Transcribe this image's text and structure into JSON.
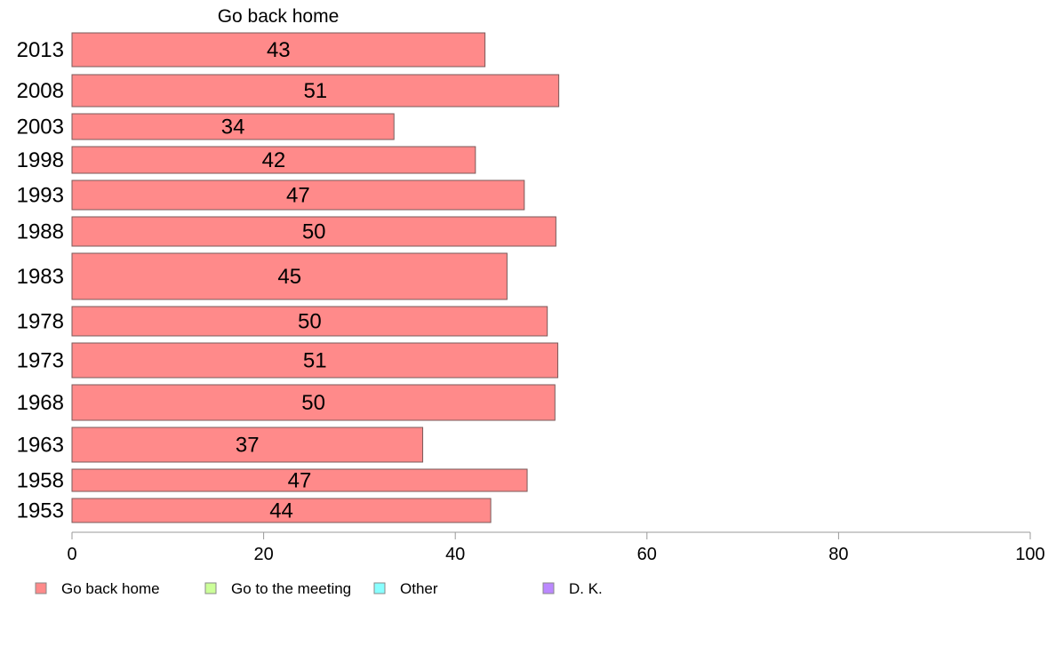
{
  "chart_data": {
    "type": "bar",
    "orientation": "horizontal",
    "title": "Go back home",
    "categories": [
      "2013",
      "2008",
      "2003",
      "1998",
      "1993",
      "1988",
      "1983",
      "1978",
      "1973",
      "1968",
      "1963",
      "1958",
      "1953"
    ],
    "series": [
      {
        "name": "Go back home",
        "color": "#ff8a8a",
        "values": [
          43.1,
          50.8,
          33.6,
          42.1,
          47.2,
          50.5,
          45.4,
          49.6,
          50.7,
          50.4,
          36.6,
          47.5,
          43.7
        ],
        "labels": [
          "43",
          "51",
          "34",
          "42",
          "47",
          "50",
          "45",
          "50",
          "51",
          "50",
          "37",
          "47",
          "44"
        ]
      }
    ],
    "xlim": [
      0,
      100
    ],
    "xticks": [
      "0",
      "20",
      "40",
      "60",
      "80",
      "100"
    ],
    "grid": false,
    "legend": {
      "position": "bottom-left",
      "items": [
        {
          "label": "Go back home",
          "color": "#ff8a8a"
        },
        {
          "label": "Go to the meeting",
          "color": "#ccff99"
        },
        {
          "label": "Other",
          "color": "#88ffff"
        },
        {
          "label": "D. K.",
          "color": "#bb88ff"
        }
      ]
    }
  }
}
